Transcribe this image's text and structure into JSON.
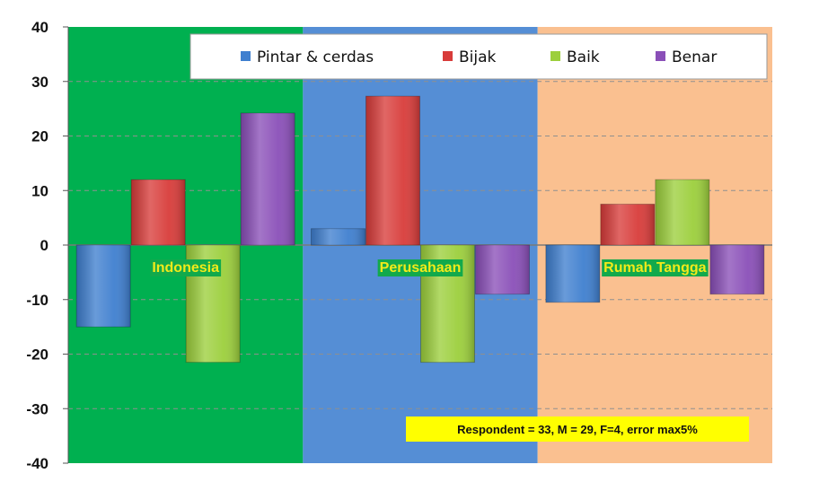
{
  "chart_data": {
    "type": "bar",
    "categories": [
      "Indonesia",
      "Perusahaan",
      "Rumah Tangga"
    ],
    "series": [
      {
        "name": "Pintar & cerdas",
        "values": [
          -15,
          3,
          -10.5
        ]
      },
      {
        "name": "Bijak",
        "values": [
          12,
          27.3,
          7.5
        ]
      },
      {
        "name": "Baik",
        "values": [
          -21.5,
          -21.5,
          12
        ]
      },
      {
        "name": "Benar",
        "values": [
          24.2,
          -9,
          -9
        ]
      }
    ],
    "ylim": [
      -40,
      40
    ],
    "yticks": [
      -40,
      -30,
      -20,
      -10,
      0,
      10,
      20,
      30,
      40
    ],
    "grid": true,
    "legend_position": "top-right",
    "annotation": "Respondent = 33, M = 29, F=4, error  max5%",
    "colors": {
      "series": [
        "#3f7fcf",
        "#d83c3a",
        "#9ccf3c",
        "#8a4fb8"
      ],
      "category_backgrounds": [
        "#00b050",
        "#558ed5",
        "#fac090"
      ],
      "category_label_bg": "#12a94c",
      "annotation_bg": "#ffff00"
    }
  }
}
